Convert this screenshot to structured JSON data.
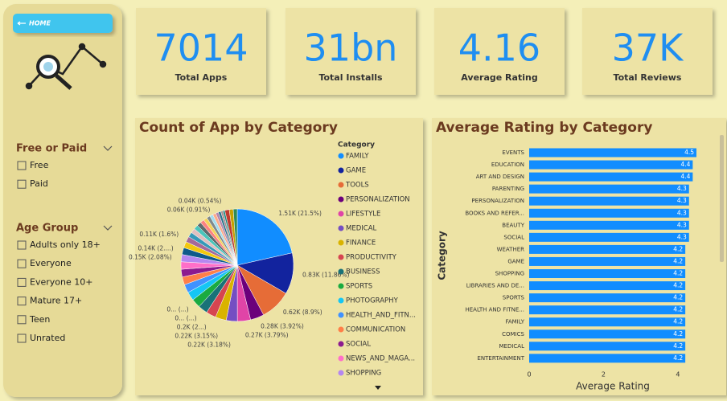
{
  "sidebar": {
    "home": "HOME",
    "filters": [
      {
        "title": "Free or Paid",
        "options": [
          "Free",
          "Paid"
        ]
      },
      {
        "title": "Age Group",
        "options": [
          "Adults only 18+",
          "Everyone",
          "Everyone 10+",
          "Mature 17+",
          "Teen",
          "Unrated"
        ]
      }
    ]
  },
  "kpis": [
    {
      "value": 7014,
      "label": "Total Apps"
    },
    {
      "value": "31bn",
      "label": "Total Installs"
    },
    {
      "value": 4.16,
      "label": "Average Rating"
    },
    {
      "value": "37K",
      "label": "Total Reviews"
    }
  ],
  "chart_data": [
    {
      "type": "pie",
      "title": "Count of App by Category",
      "legend_title": "Category",
      "categories": [
        "FAMILY",
        "GAME",
        "TOOLS",
        "PERSONALIZATION",
        "LIFESTYLE",
        "MEDICAL",
        "FINANCE",
        "PRODUCTIVITY",
        "BUSINESS",
        "SPORTS",
        "PHOTOGRAPHY",
        "HEALTH_AND_FITN...",
        "COMMUNICATION",
        "SOCIAL",
        "NEWS_AND_MAGA...",
        "SHOPPING",
        null,
        null,
        null,
        null,
        null,
        null,
        null,
        null,
        null,
        null,
        null,
        null,
        null,
        null,
        null,
        null,
        null,
        null,
        null
      ],
      "values": [
        1508,
        832,
        624,
        275,
        266,
        223,
        221,
        200,
        190,
        180,
        175,
        170,
        160,
        155,
        150,
        146,
        140,
        125,
        112,
        100,
        95,
        90,
        85,
        80,
        75,
        70,
        65,
        64,
        55,
        50,
        45,
        38,
        90,
        80,
        80
      ],
      "value_labels": [
        "1.51K (21.5%)",
        "0.83K (11.86%)",
        "0.62K (8.9%)",
        "0.28K (3.92%)",
        "0.27K (3.79%)",
        "0.22K (3.18%)",
        "0.22K (3.15%)",
        "0.2K (2...)",
        "0... (...)",
        "0... (...)",
        null,
        null,
        null,
        null,
        null,
        "0.15K (2.08%)",
        "0.14K (2....)",
        null,
        "0.11K (1.6%)",
        null,
        null,
        null,
        null,
        null,
        null,
        null,
        null,
        "0.06K (0.91%)",
        null,
        null,
        null,
        "0.04K (0.54%)",
        null,
        null,
        null
      ],
      "colors": [
        "#118dff",
        "#12239e",
        "#e66c37",
        "#6b007b",
        "#e044a7",
        "#744ec2",
        "#d9b300",
        "#d64550",
        "#197278",
        "#1aab40",
        "#15c6f4",
        "#4092ff",
        "#ff7f48",
        "#8c1b8f",
        "#ff6fc8",
        "#b587f0",
        "#0e5a8a",
        "#f2c80f",
        "#a66999",
        "#3599b8",
        "#dfbfbf",
        "#4ac5bb",
        "#5f6b6d",
        "#fb8281",
        "#f4d25a",
        "#7f898a",
        "#a4ddee",
        "#fdab89",
        "#b687ac",
        "#28738a",
        "#a78f8f",
        "#168980",
        "#bf3b2f",
        "#c4a000",
        "#2e8b57"
      ]
    },
    {
      "type": "hbar",
      "title": "Average Rating by Category",
      "xlabel": "Average Rating",
      "ylabel": "Category",
      "categories": [
        "EVENTS",
        "EDUCATION",
        "ART AND DESIGN",
        "PARENTING",
        "PERSONALIZATION",
        "BOOKS AND REFER...",
        "BEAUTY",
        "SOCIAL",
        "WEATHER",
        "GAME",
        "SHOPPING",
        "LIBRARIES AND DE...",
        "SPORTS",
        "HEALTH AND FITNE...",
        "FAMILY",
        "COMICS",
        "MEDICAL",
        "ENTERTAINMENT"
      ],
      "values": [
        4.5,
        4.4,
        4.4,
        4.3,
        4.3,
        4.3,
        4.3,
        4.3,
        4.2,
        4.2,
        4.2,
        4.2,
        4.2,
        4.2,
        4.2,
        4.2,
        4.2,
        4.2
      ],
      "color": "#118dff",
      "xlim": [
        0,
        4.5
      ],
      "xticks": [
        0,
        2,
        4
      ]
    }
  ]
}
